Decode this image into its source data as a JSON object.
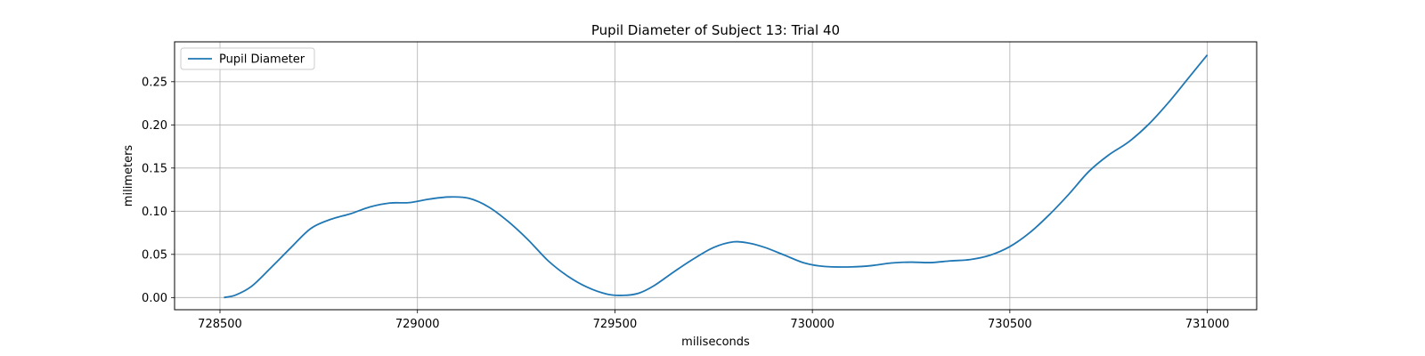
{
  "chart_data": {
    "type": "line",
    "title": "Pupil Diameter of Subject 13: Trial 40",
    "xlabel": "miliseconds",
    "ylabel": "milimeters",
    "xlim": [
      728385,
      731125
    ],
    "ylim": [
      -0.0141,
      0.2962
    ],
    "xticks": [
      728500,
      729000,
      729500,
      730000,
      730500,
      731000
    ],
    "xtick_labels": [
      "728500",
      "729000",
      "729500",
      "730000",
      "730500",
      "731000"
    ],
    "yticks": [
      0.0,
      0.05,
      0.1,
      0.15,
      0.2,
      0.25
    ],
    "ytick_labels": [
      "0.00",
      "0.05",
      "0.10",
      "0.15",
      "0.20",
      "0.25"
    ],
    "grid": true,
    "legend_position": "top-left",
    "series": [
      {
        "name": "Pupil Diameter",
        "color": "#1f77b4",
        "x": [
          728510,
          728540,
          728580,
          728630,
          728680,
          728730,
          728780,
          728830,
          728880,
          728930,
          728980,
          729030,
          729080,
          729130,
          729180,
          729230,
          729280,
          729330,
          729380,
          729430,
          729480,
          729520,
          729560,
          729600,
          729650,
          729700,
          729750,
          729800,
          729840,
          729880,
          729930,
          729980,
          730030,
          730100,
          730150,
          730200,
          730250,
          730300,
          730350,
          730400,
          730450,
          730500,
          730550,
          730600,
          730650,
          730700,
          730750,
          730800,
          730850,
          730900,
          730950,
          731000
        ],
        "y": [
          0.0,
          0.003,
          0.013,
          0.035,
          0.058,
          0.08,
          0.0905,
          0.097,
          0.105,
          0.1095,
          0.11,
          0.114,
          0.1165,
          0.115,
          0.105,
          0.088,
          0.067,
          0.043,
          0.025,
          0.012,
          0.004,
          0.0025,
          0.005,
          0.014,
          0.03,
          0.045,
          0.058,
          0.0645,
          0.063,
          0.058,
          0.049,
          0.04,
          0.036,
          0.0355,
          0.037,
          0.04,
          0.041,
          0.0405,
          0.0425,
          0.044,
          0.049,
          0.059,
          0.075,
          0.096,
          0.12,
          0.146,
          0.165,
          0.18,
          0.2,
          0.225,
          0.253,
          0.281
        ]
      }
    ]
  }
}
